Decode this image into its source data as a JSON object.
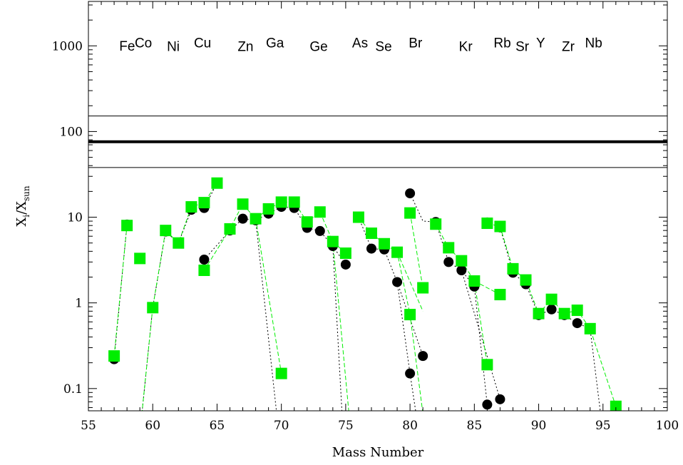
{
  "chart_data": {
    "type": "scatter",
    "xlabel": "Mass Number",
    "ylabel_main": "X",
    "ylabel_sub1": "i",
    "ylabel_mid": "/X",
    "ylabel_sub2": "sun",
    "xlim": [
      55,
      100
    ],
    "ylim": [
      0.055,
      3300
    ],
    "yscale": "log",
    "xticks": [
      55,
      60,
      65,
      70,
      75,
      80,
      85,
      90,
      95,
      100
    ],
    "xtick_labels": [
      "55",
      "60",
      "65",
      "70",
      "75",
      "80",
      "85",
      "90",
      "95",
      "100"
    ],
    "yticks": [
      0.1,
      1,
      10,
      100,
      1000
    ],
    "ytick_labels": [
      "0.1",
      "1",
      "10",
      "100",
      "1000"
    ],
    "grid": false,
    "hlines": [
      {
        "y": 76,
        "style": "thick"
      },
      {
        "y": 152,
        "style": "thin"
      },
      {
        "y": 38,
        "style": "thin"
      }
    ],
    "element_labels": [
      {
        "text": "Fe",
        "x": 57.4,
        "y": 880
      },
      {
        "text": "Co",
        "x": 58.6,
        "y": 960
      },
      {
        "text": "Ni",
        "x": 61.1,
        "y": 870
      },
      {
        "text": "Cu",
        "x": 63.2,
        "y": 960
      },
      {
        "text": "Zn",
        "x": 66.6,
        "y": 870
      },
      {
        "text": "Ga",
        "x": 68.8,
        "y": 960
      },
      {
        "text": "Ge",
        "x": 72.2,
        "y": 870
      },
      {
        "text": "As",
        "x": 75.5,
        "y": 960
      },
      {
        "text": "Se",
        "x": 77.3,
        "y": 870
      },
      {
        "text": "Br",
        "x": 79.9,
        "y": 960
      },
      {
        "text": "Kr",
        "x": 83.8,
        "y": 870
      },
      {
        "text": "Rb",
        "x": 86.5,
        "y": 960
      },
      {
        "text": "Sr",
        "x": 88.2,
        "y": 870
      },
      {
        "text": "Y",
        "x": 89.8,
        "y": 960
      },
      {
        "text": "Zr",
        "x": 91.8,
        "y": 870
      },
      {
        "text": "Nb",
        "x": 93.6,
        "y": 960
      }
    ],
    "series": [
      {
        "marker": "circle",
        "color": "#000000",
        "line_style": "dotted",
        "segments": [
          [
            [
              57,
              0.22
            ],
            [
              58,
              8.2
            ]
          ],
          [
            [
              59,
              0.03
            ],
            [
              60,
              0.88
            ],
            [
              61,
              6.8
            ],
            [
              62,
              5.0
            ],
            [
              63,
              12.2
            ],
            [
              64,
              12.8
            ],
            [
              65,
              25.0
            ]
          ],
          [
            [
              64,
              3.2
            ],
            [
              66,
              7.0
            ],
            [
              67,
              9.6
            ],
            [
              68,
              9.2
            ],
            [
              69,
              11.0
            ],
            [
              70,
              13.2
            ],
            [
              71,
              12.8
            ],
            [
              72,
              7.5
            ],
            [
              73,
              6.9
            ],
            [
              74,
              4.6
            ],
            [
              75,
              2.8
            ]
          ],
          [
            [
              68,
              9.2
            ],
            [
              69.8,
              0.03
            ]
          ],
          [
            [
              74,
              4.6
            ],
            [
              74.8,
              0.03
            ]
          ],
          [
            [
              76,
              10.0
            ],
            [
              77,
              4.3
            ],
            [
              78,
              4.2
            ],
            [
              79,
              1.75
            ],
            [
              80,
              0.15
            ],
            [
              80.7,
              0.03
            ]
          ],
          [
            [
              80,
              19.0
            ],
            [
              81,
              9.0
            ],
            [
              82,
              8.8
            ],
            [
              83,
              3.0
            ],
            [
              84,
              2.4
            ],
            [
              85,
              1.55
            ],
            [
              86,
              0.065
            ]
          ],
          [
            [
              86,
              8.7
            ],
            [
              87,
              7.6
            ],
            [
              88,
              2.25
            ],
            [
              89,
              1.65
            ],
            [
              90,
              0.72
            ],
            [
              91,
              0.84
            ],
            [
              92,
              0.72
            ],
            [
              93,
              0.58
            ],
            [
              94,
              0.5
            ],
            [
              95,
              0.03
            ]
          ],
          [
            [
              79,
              1.75
            ],
            [
              81,
              0.24
            ]
          ],
          [
            [
              84,
              2.4
            ],
            [
              87,
              0.075
            ]
          ]
        ],
        "points": [
          [
            57,
            0.22
          ],
          [
            58,
            8.2
          ],
          [
            60,
            0.88
          ],
          [
            61,
            6.8
          ],
          [
            62,
            5.0
          ],
          [
            63,
            12.2
          ],
          [
            64,
            12.8
          ],
          [
            64,
            3.2
          ],
          [
            66,
            7.0
          ],
          [
            67,
            9.6
          ],
          [
            68,
            9.2
          ],
          [
            69,
            11.0
          ],
          [
            70,
            13.2
          ],
          [
            71,
            12.8
          ],
          [
            72,
            7.5
          ],
          [
            73,
            6.9
          ],
          [
            74,
            4.6
          ],
          [
            75,
            2.8
          ],
          [
            76,
            10.0
          ],
          [
            77,
            4.3
          ],
          [
            78,
            4.2
          ],
          [
            79,
            1.75
          ],
          [
            80,
            0.15
          ],
          [
            81,
            0.24
          ],
          [
            80,
            19.0
          ],
          [
            82,
            8.8
          ],
          [
            83,
            3.0
          ],
          [
            84,
            2.4
          ],
          [
            85,
            1.55
          ],
          [
            86,
            0.065
          ],
          [
            87,
            0.075
          ],
          [
            86,
            8.7
          ],
          [
            87,
            7.6
          ],
          [
            88,
            2.25
          ],
          [
            89,
            1.65
          ],
          [
            90,
            0.72
          ],
          [
            91,
            0.84
          ],
          [
            92,
            0.72
          ],
          [
            93,
            0.58
          ]
        ]
      },
      {
        "marker": "square",
        "color": "#00ee00",
        "line_style": "dashed",
        "segments": [
          [
            [
              57,
              0.24
            ],
            [
              58,
              8.0
            ]
          ],
          [
            [
              59,
              0.03
            ],
            [
              60,
              0.88
            ],
            [
              61,
              7.0
            ],
            [
              62,
              5.0
            ],
            [
              63,
              13.2
            ],
            [
              64,
              14.8
            ],
            [
              65,
              25.0
            ]
          ],
          [
            [
              64,
              2.4
            ],
            [
              66,
              7.3
            ],
            [
              67,
              14.2
            ],
            [
              68,
              9.6
            ],
            [
              69,
              12.5
            ],
            [
              70,
              15.0
            ],
            [
              71,
              15.0
            ],
            [
              72,
              8.8
            ],
            [
              73,
              11.5
            ],
            [
              74,
              5.2
            ],
            [
              75,
              3.8
            ]
          ],
          [
            [
              68,
              9.6
            ],
            [
              70,
              0.15
            ]
          ],
          [
            [
              74,
              5.2
            ],
            [
              75.4,
              0.03
            ]
          ],
          [
            [
              76,
              10.0
            ],
            [
              77,
              6.5
            ],
            [
              78,
              4.9
            ],
            [
              79,
              3.9
            ],
            [
              80,
              0.73
            ],
            [
              81.2,
              0.03
            ]
          ],
          [
            [
              80,
              11.2
            ],
            [
              81,
              1.5
            ]
          ],
          [
            [
              82,
              8.3
            ],
            [
              83,
              4.4
            ],
            [
              84,
              3.1
            ],
            [
              85,
              1.8
            ],
            [
              86,
              0.19
            ]
          ],
          [
            [
              86,
              8.5
            ],
            [
              87,
              7.8
            ],
            [
              88,
              2.5
            ],
            [
              89,
              1.85
            ],
            [
              90,
              0.75
            ],
            [
              91,
              1.1
            ],
            [
              92,
              0.75
            ],
            [
              93,
              0.82
            ],
            [
              94,
              0.5
            ],
            [
              96,
              0.062
            ]
          ],
          [
            [
              79,
              3.9
            ],
            [
              81,
              0.8
            ]
          ],
          [
            [
              85,
              1.8
            ],
            [
              87,
              1.25
            ]
          ]
        ],
        "points": [
          [
            57,
            0.24
          ],
          [
            58,
            8.0
          ],
          [
            59,
            3.3
          ],
          [
            60,
            0.88
          ],
          [
            61,
            7.0
          ],
          [
            62,
            5.0
          ],
          [
            63,
            13.2
          ],
          [
            64,
            14.8
          ],
          [
            64,
            2.4
          ],
          [
            65,
            25.0
          ],
          [
            66,
            7.3
          ],
          [
            67,
            14.2
          ],
          [
            68,
            9.6
          ],
          [
            69,
            12.5
          ],
          [
            70,
            15.0
          ],
          [
            70,
            0.15
          ],
          [
            71,
            15.0
          ],
          [
            72,
            8.8
          ],
          [
            73,
            11.5
          ],
          [
            74,
            5.2
          ],
          [
            75,
            3.8
          ],
          [
            76,
            10.0
          ],
          [
            77,
            6.5
          ],
          [
            78,
            4.9
          ],
          [
            79,
            3.9
          ],
          [
            80,
            0.73
          ],
          [
            80,
            11.2
          ],
          [
            81,
            1.5
          ],
          [
            82,
            8.3
          ],
          [
            83,
            4.4
          ],
          [
            84,
            3.1
          ],
          [
            85,
            1.8
          ],
          [
            86,
            0.19
          ],
          [
            86,
            8.5
          ],
          [
            87,
            7.8
          ],
          [
            87,
            1.25
          ],
          [
            88,
            2.5
          ],
          [
            89,
            1.85
          ],
          [
            90,
            0.75
          ],
          [
            91,
            1.1
          ],
          [
            92,
            0.75
          ],
          [
            93,
            0.82
          ],
          [
            94,
            0.5
          ],
          [
            96,
            0.062
          ]
        ]
      }
    ]
  }
}
